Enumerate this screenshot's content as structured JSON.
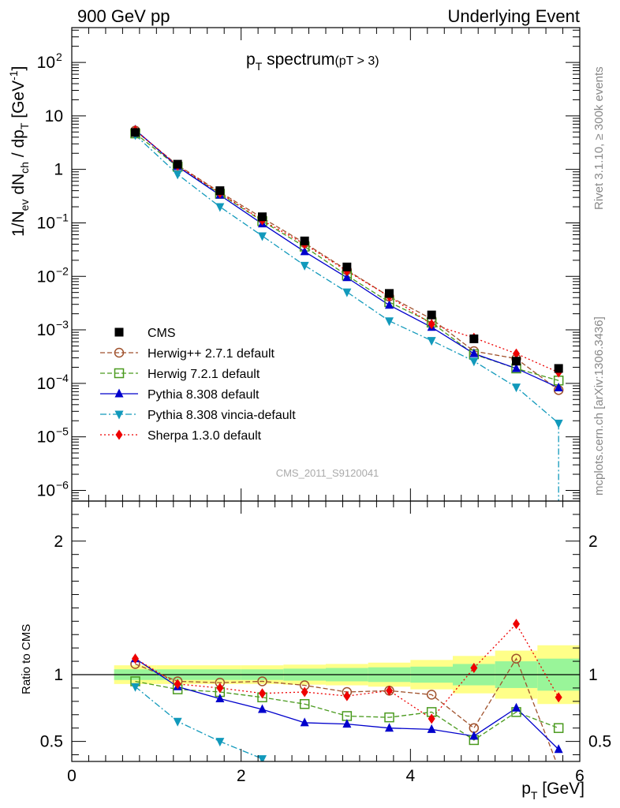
{
  "header": {
    "left": "900 GeV pp",
    "right": "Underlying Event"
  },
  "side_labels": {
    "top": "Rivet 3.1.10, ≥ 300k events",
    "bottom": "mcplots.cern.ch [arXiv:1306.3436]"
  },
  "chart_data": {
    "type": "line",
    "title_main": "p",
    "title_sub": "T",
    "title_main2": " spectrum",
    "title_cut": "(pT >  3)",
    "watermark": "CMS_2011_S9120041",
    "xlabel_main": "p",
    "xlabel_sub": "T",
    "xlabel_unit": " [GeV]",
    "xlim": [
      0,
      6
    ],
    "main_ylim_log10": [
      -6.2,
      2.65
    ],
    "ratio_ylim": [
      0.35,
      2.3
    ],
    "ratio_ylabel": "Ratio to CMS",
    "x_ticks": [
      "0",
      "2",
      "4",
      "6"
    ],
    "x_tick_values": [
      0,
      2,
      4,
      6
    ],
    "ratio_ticks": [
      "0.5",
      "1",
      "2"
    ],
    "ratio_tick_values": [
      0.5,
      1,
      2
    ],
    "main_ticks": [
      {
        "exp": -6,
        "label": "10",
        "sup": "−6"
      },
      {
        "exp": -5,
        "label": "10",
        "sup": "−5"
      },
      {
        "exp": -4,
        "label": "10",
        "sup": "−4"
      },
      {
        "exp": -3,
        "label": "10",
        "sup": "−3"
      },
      {
        "exp": -2,
        "label": "10",
        "sup": "−2"
      },
      {
        "exp": -1,
        "label": "10",
        "sup": "−1"
      },
      {
        "exp": 0,
        "label": "1",
        "sup": ""
      },
      {
        "exp": 1,
        "label": "10",
        "sup": ""
      },
      {
        "exp": 2,
        "label": "10",
        "sup": "2"
      }
    ],
    "x": [
      0.75,
      1.25,
      1.75,
      2.25,
      2.75,
      3.25,
      3.75,
      4.25,
      4.75,
      5.25,
      5.75
    ],
    "band_edges": [
      0.5,
      1.0,
      1.5,
      2.0,
      2.5,
      3.0,
      3.5,
      4.0,
      4.5,
      5.0,
      5.5,
      6.0
    ],
    "band_green": [
      0.04,
      0.04,
      0.04,
      0.04,
      0.045,
      0.05,
      0.055,
      0.06,
      0.08,
      0.1,
      0.12
    ],
    "band_yellow": [
      0.07,
      0.07,
      0.07,
      0.07,
      0.075,
      0.08,
      0.09,
      0.11,
      0.14,
      0.18,
      0.22
    ],
    "data": {
      "name": "CMS",
      "values": [
        4.9,
        1.25,
        0.4,
        0.13,
        0.046,
        0.015,
        0.0048,
        0.0019,
        0.00068,
        0.00026,
        0.00019
      ]
    },
    "series": [
      {
        "name": "Herwig++ 2.7.1 default",
        "color": "#a0522d",
        "marker": "open-circle",
        "dash": "6,3",
        "values": [
          5.3,
          1.2,
          0.375,
          0.124,
          0.042,
          0.0131,
          0.0042,
          0.0016,
          0.0004,
          0.00029,
          7.5e-05
        ],
        "ratio": [
          1.08,
          0.95,
          0.94,
          0.95,
          0.92,
          0.87,
          0.88,
          0.85,
          0.6,
          1.12,
          0.3
        ]
      },
      {
        "name": "Herwig 7.2.1 default",
        "color": "#4a9a1e",
        "marker": "open-square",
        "dash": "6,3",
        "values": [
          4.7,
          1.12,
          0.35,
          0.108,
          0.036,
          0.0104,
          0.0033,
          0.00137,
          0.00035,
          0.00019,
          0.000113
        ],
        "ratio": [
          0.95,
          0.89,
          0.87,
          0.83,
          0.78,
          0.69,
          0.68,
          0.72,
          0.51,
          0.72,
          0.6
        ]
      },
      {
        "name": "Pythia 8.308 default",
        "color": "#0000cc",
        "marker": "triangle-up",
        "dash": "",
        "values": [
          5.5,
          1.13,
          0.33,
          0.096,
          0.029,
          0.0095,
          0.0029,
          0.00112,
          0.00036,
          0.00019,
          8.3e-05
        ],
        "ratio": [
          1.12,
          0.91,
          0.82,
          0.74,
          0.64,
          0.63,
          0.6,
          0.59,
          0.54,
          0.75,
          0.44
        ]
      },
      {
        "name": "Pythia 8.308 vincia-default",
        "color": "#1199bb",
        "marker": "triangle-down",
        "dash": "8,3,2,3",
        "values": [
          4.4,
          0.81,
          0.2,
          0.057,
          0.016,
          0.0051,
          0.00147,
          0.00063,
          0.00026,
          8.5e-05,
          1.8e-05
        ],
        "ratio": [
          0.91,
          0.65,
          0.5,
          0.37
        ]
      },
      {
        "name": "Sherpa 1.3.0 default",
        "color": "#ee0000",
        "marker": "diamond",
        "dash": "2,3",
        "values": [
          5.4,
          1.17,
          0.36,
          0.112,
          0.04,
          0.0126,
          0.0042,
          0.00128,
          0.00071,
          0.00036,
          0.00016
        ],
        "ratio": [
          1.12,
          0.93,
          0.9,
          0.86,
          0.87,
          0.84,
          0.88,
          0.67,
          1.05,
          1.38,
          0.83
        ]
      }
    ]
  }
}
